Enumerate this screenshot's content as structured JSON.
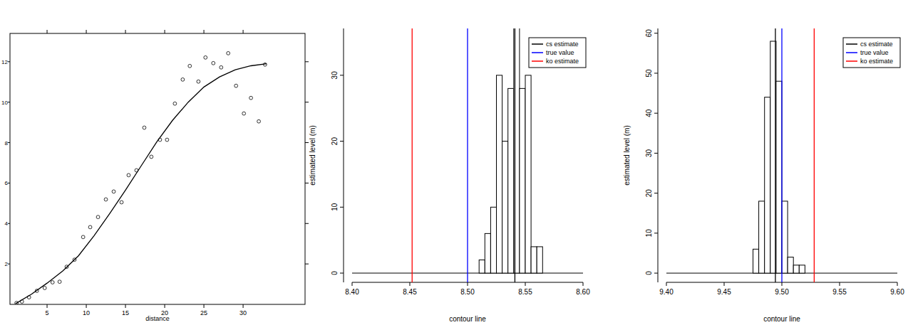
{
  "chart_data": [
    {
      "type": "scatter",
      "xlabel": "distance",
      "xlim": [
        0.27,
        37.9
      ],
      "ylim": [
        0,
        13.4
      ],
      "xticks": [
        5,
        10,
        15,
        20,
        25,
        30
      ],
      "yticks": [
        2,
        4,
        6,
        8,
        10,
        12
      ],
      "series": [
        {
          "type": "scatter",
          "marker": "circle",
          "color": "#000000",
          "x": [
            1.1,
            1.8,
            2.7,
            3.7,
            4.7,
            5.7,
            6.6,
            7.5,
            8.5,
            9.6,
            10.5,
            11.5,
            12.5,
            13.5,
            14.5,
            15.4,
            16.4,
            17.4,
            18.3,
            19.4,
            20.3,
            21.3,
            22.3,
            23.2,
            24.3,
            25.2,
            26.2,
            27.2,
            28.1,
            29.1,
            30.1,
            31.0,
            32.0,
            32.8
          ],
          "values": [
            0.07,
            0.14,
            0.35,
            0.67,
            0.81,
            1.09,
            1.12,
            1.86,
            2.21,
            3.33,
            3.82,
            4.32,
            5.19,
            5.58,
            5.05,
            6.39,
            6.63,
            8.74,
            7.3,
            8.14,
            8.14,
            9.93,
            11.12,
            11.79,
            11.02,
            12.21,
            11.93,
            11.72,
            12.42,
            10.81,
            9.44,
            10.21,
            9.05,
            11.86
          ]
        },
        {
          "type": "line",
          "line_style": "solid",
          "color": "#000000",
          "x": [
            1,
            3,
            5,
            7,
            9,
            11,
            13,
            15,
            17,
            19,
            21,
            23,
            25,
            27,
            29,
            31,
            33
          ],
          "values": [
            0.04,
            0.5,
            1.05,
            1.65,
            2.4,
            3.4,
            4.5,
            5.65,
            6.85,
            8.04,
            9.1,
            10.0,
            10.75,
            11.25,
            11.6,
            11.8,
            11.9
          ]
        }
      ]
    },
    {
      "type": "histogram",
      "xlabel": "contour line",
      "ylabel": "estimated level (m)",
      "xlim": [
        8.4,
        8.6
      ],
      "ylim": [
        -1.4,
        37.1
      ],
      "xticks": [
        {
          "value": 8.4,
          "label": "8.40"
        },
        8.45,
        {
          "value": 8.5,
          "label": "8.50"
        },
        8.55,
        {
          "value": 8.6,
          "label": "8.60"
        }
      ],
      "yticks": [
        0,
        10,
        20,
        30
      ],
      "bins": [
        8.51,
        8.515,
        8.52,
        8.525,
        8.53,
        8.535,
        8.54,
        8.545,
        8.55,
        8.555,
        8.56,
        8.565
      ],
      "counts": [
        2,
        6,
        10,
        30,
        20,
        28,
        38,
        28,
        30,
        4,
        4
      ],
      "color": "#ffffff",
      "legend": "top-right",
      "series": [
        {
          "name": "cs estimate",
          "type": "vline",
          "color": "#000000",
          "values": [
            8.541
          ]
        },
        {
          "name": "true value",
          "type": "vline",
          "color": "#0000ff",
          "values": [
            8.5
          ]
        },
        {
          "name": "ko estimate",
          "type": "vline",
          "color": "#ff0000",
          "values": [
            8.452
          ]
        }
      ]
    },
    {
      "type": "histogram",
      "xlabel": "contour line",
      "ylabel": "estimated level (m)",
      "xlim": [
        9.4,
        9.6
      ],
      "ylim": [
        -2.3,
        61.2
      ],
      "xticks": [
        {
          "value": 9.4,
          "label": "9.40"
        },
        9.45,
        {
          "value": 9.5,
          "label": "9.50"
        },
        9.55,
        {
          "value": 9.6,
          "label": "9.60"
        }
      ],
      "yticks": [
        0,
        10,
        20,
        30,
        40,
        50,
        60
      ],
      "bins": [
        9.475,
        9.48,
        9.485,
        9.49,
        9.495,
        9.5,
        9.505,
        9.51,
        9.515,
        9.52
      ],
      "counts": [
        6,
        18,
        44,
        58,
        48,
        18,
        4,
        2,
        2
      ],
      "color": "#ffffff",
      "legend": "top-right",
      "series": [
        {
          "name": "cs estimate",
          "type": "vline",
          "color": "#000000",
          "values": [
            9.4944
          ]
        },
        {
          "name": "true value",
          "type": "vline",
          "color": "#0000ff",
          "values": [
            9.5
          ]
        },
        {
          "name": "ko estimate",
          "type": "vline",
          "color": "#ff0000",
          "values": [
            9.528
          ]
        }
      ]
    }
  ]
}
